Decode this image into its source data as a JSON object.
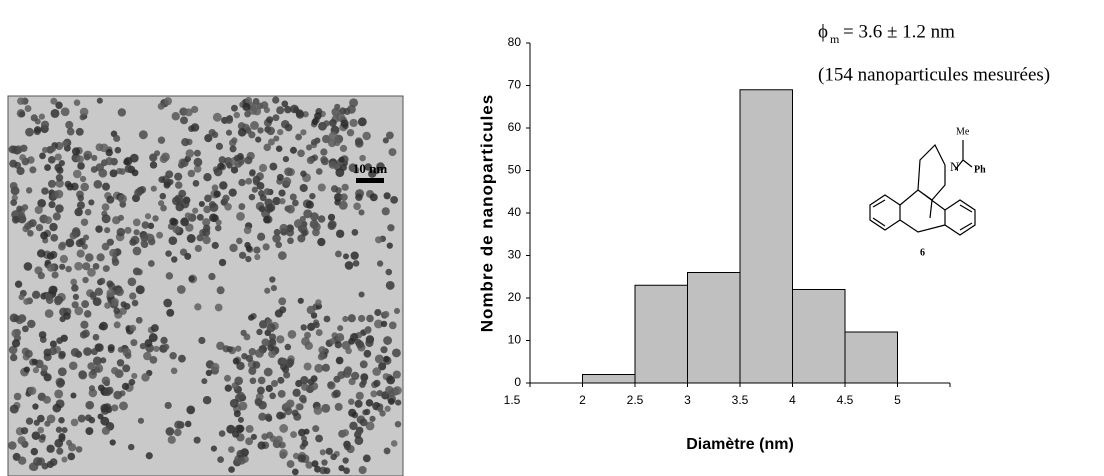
{
  "chart_data": {
    "type": "histogram",
    "annotations": {
      "symbol": "ϕ",
      "subscript": "m",
      "text": "= 3.6 ± 1.2 nm",
      "count_note": "(154 nanoparticules mesurées)"
    },
    "xlabel": "Diamètre (nm)",
    "ylabel": "Nombre de nanoparticules",
    "bins": [
      2,
      2.5,
      3,
      3.5,
      4,
      4.5,
      5
    ],
    "values": [
      2,
      23,
      26,
      69,
      22,
      12
    ],
    "color": "#c0c0c0",
    "xlim": [
      1.5,
      5.5
    ],
    "xticks": [
      1.5,
      2,
      2.5,
      3,
      3.5,
      4,
      4.5,
      5
    ],
    "ylim": [
      0,
      80
    ],
    "yticks": [
      0,
      10,
      20,
      30,
      40,
      50,
      60,
      70,
      80
    ]
  },
  "image": {
    "scale_bar": "10 nm"
  },
  "molecule": {
    "methyl": "Me",
    "nitrogen": "N",
    "phenyl": "Ph",
    "number": "6"
  }
}
